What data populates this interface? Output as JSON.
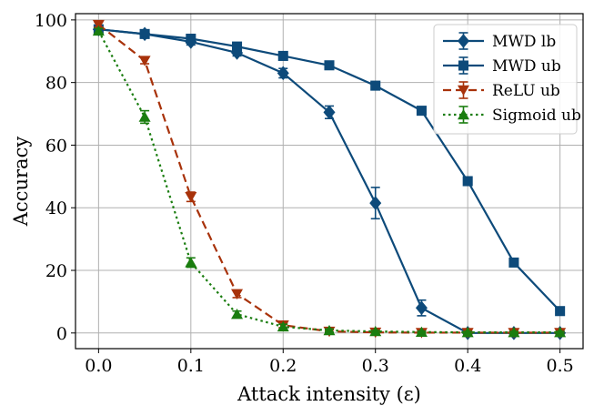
{
  "chart_data": {
    "type": "line",
    "title": "",
    "xlabel": "Attack intensity (ε)",
    "ylabel": "Accuracy",
    "xlim": [
      -0.025,
      0.525
    ],
    "ylim": [
      -5,
      102
    ],
    "grid": true,
    "legend_position": "top-right",
    "x_ticks": [
      0.0,
      0.1,
      0.2,
      0.3,
      0.4,
      0.5
    ],
    "x_tick_labels": [
      "0.0",
      "0.1",
      "0.2",
      "0.3",
      "0.4",
      "0.5"
    ],
    "y_ticks": [
      0,
      20,
      40,
      60,
      80,
      100
    ],
    "y_tick_labels": [
      "0",
      "20",
      "40",
      "60",
      "80",
      "100"
    ],
    "x": [
      0.0,
      0.05,
      0.1,
      0.15,
      0.2,
      0.25,
      0.3,
      0.35,
      0.4,
      0.45,
      0.5
    ],
    "series": [
      {
        "name": "MWD lb",
        "color": "#0d4a7a",
        "line_style": "solid",
        "marker": "diamond",
        "values": [
          97,
          95.5,
          93,
          89.5,
          83,
          70.5,
          41.5,
          8,
          0,
          0,
          0
        ],
        "errors": [
          0.8,
          0.8,
          1.0,
          1.0,
          1.5,
          2.0,
          5.0,
          2.5,
          0.5,
          0.5,
          0.5
        ]
      },
      {
        "name": "MWD ub",
        "color": "#0d4a7a",
        "line_style": "solid",
        "marker": "square",
        "values": [
          97,
          95.5,
          94,
          91.5,
          88.5,
          85.5,
          79,
          71,
          48.5,
          22.5,
          7
        ],
        "errors": [
          0.5,
          0.5,
          0.5,
          0.5,
          0.5,
          0.5,
          0.5,
          0.5,
          0.5,
          0.5,
          0.5
        ]
      },
      {
        "name": "ReLU ub",
        "color": "#a8320a",
        "line_style": "dashed",
        "marker": "triangle-down",
        "values": [
          98.5,
          87,
          43.5,
          12.5,
          2.5,
          0.5,
          0.2,
          0.1,
          0.1,
          0.1,
          0.1
        ],
        "errors": [
          0.8,
          1.0,
          1.5,
          1.2,
          0.8,
          0.5,
          0.3,
          0.3,
          0.3,
          0.3,
          0.3
        ]
      },
      {
        "name": "Sigmoid ub",
        "color": "#1a7d0f",
        "line_style": "dotted",
        "marker": "triangle-up",
        "values": [
          96.5,
          69,
          22.5,
          6,
          2,
          0.8,
          0.5,
          0.3,
          0.2,
          0.2,
          0.2
        ],
        "errors": [
          0.8,
          2.0,
          1.5,
          1.0,
          0.8,
          0.5,
          0.3,
          0.3,
          0.3,
          0.3,
          0.3
        ]
      }
    ]
  }
}
